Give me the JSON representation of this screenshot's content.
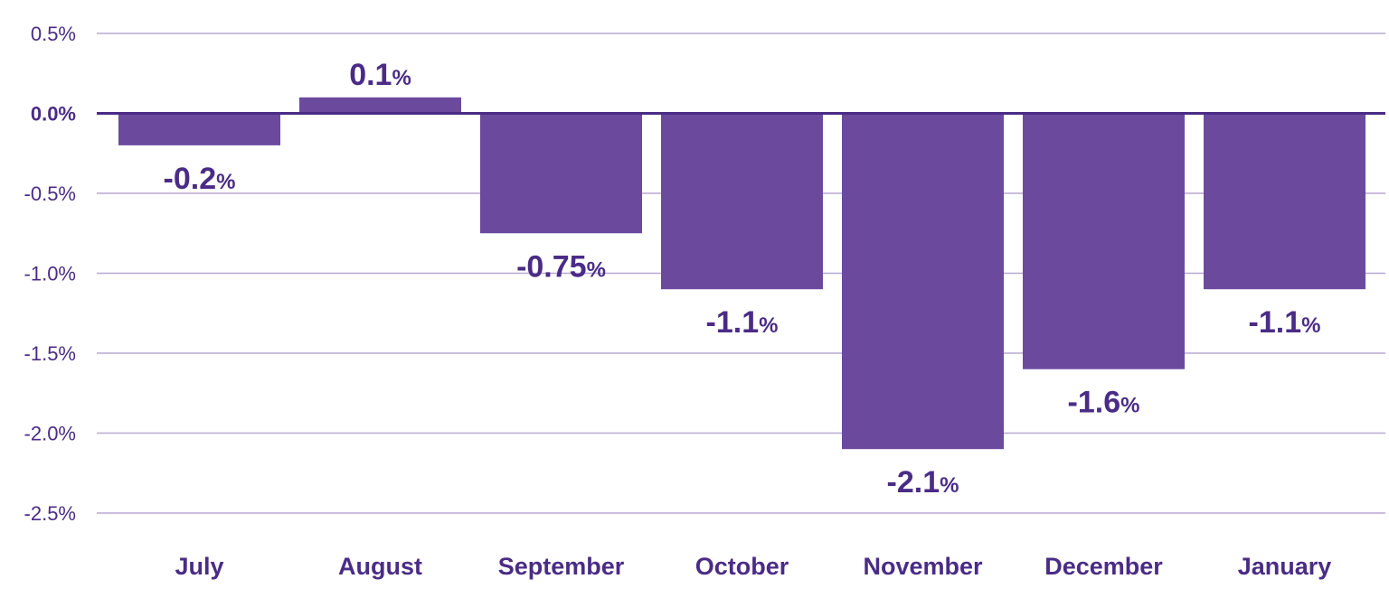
{
  "chart_data": {
    "type": "bar",
    "title": "",
    "xlabel": "",
    "ylabel": "",
    "categories": [
      "July",
      "August",
      "September",
      "October",
      "November",
      "December",
      "January"
    ],
    "values": [
      -0.2,
      0.1,
      -0.75,
      -1.1,
      -2.1,
      -1.6,
      -1.1
    ],
    "value_labels": [
      "-0.2",
      "0.1",
      "-0.75",
      "-1.1",
      "-2.1",
      "-1.6",
      "-1.1"
    ],
    "value_suffix": "%",
    "ylim": [
      -2.5,
      0.5
    ],
    "yticks": [
      0.5,
      0.0,
      -0.5,
      -1.0,
      -1.5,
      -2.0,
      -2.5
    ],
    "ytick_labels": [
      "0.5%",
      "0.0%",
      "-0.5%",
      "-1.0%",
      "-1.5%",
      "-2.0%",
      "-2.5%"
    ],
    "grid": true,
    "legend": "none",
    "colors": {
      "bar": "#6b4a9e",
      "text": "#4a2c86",
      "grid": "#b7a9d2",
      "zero_line": "#4a2c86"
    }
  }
}
